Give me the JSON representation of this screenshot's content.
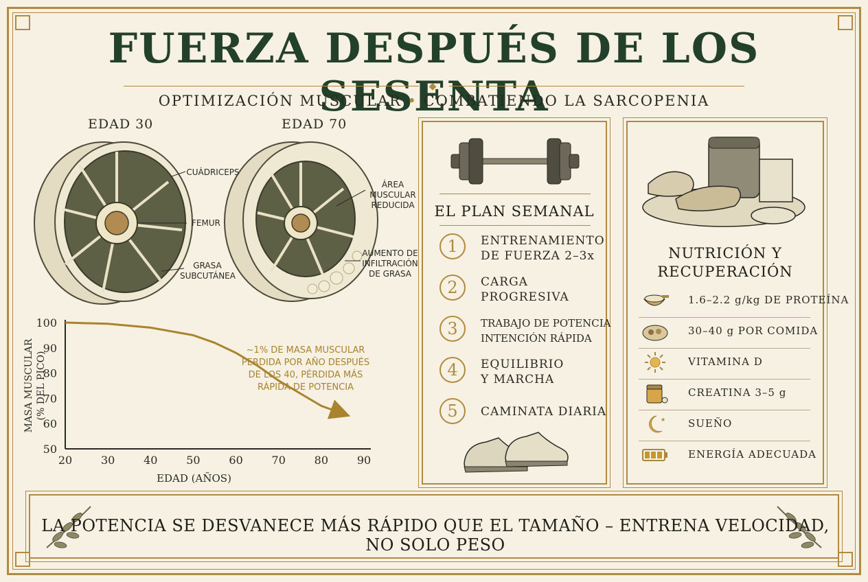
{
  "header": {
    "title": "FUERZA DESPUÉS DE LOS SESENTA",
    "subtitle_left": "OPTIMIZACIÓN MUSCULAR",
    "subtitle_sep": "•",
    "subtitle_right": "COMBATIENDO LA SARCOPENIA"
  },
  "cross_sections": {
    "young": {
      "label": "EDAD 30",
      "annotations": [
        "CUÁDRICEPS",
        "FEMUR",
        "GRASA SUBCUTÁNEA"
      ]
    },
    "old": {
      "label": "EDAD 70",
      "annotations": [
        "ÁREA MUSCULAR REDUCIDA",
        "AUMENTO DE INFILTRACIÓN DE GRASA"
      ]
    }
  },
  "chart_data": {
    "type": "line",
    "xlabel": "EDAD (AÑOS)",
    "ylabel": "MASA MUSCULAR (% DEL PICO)",
    "xlim": [
      20,
      90
    ],
    "ylim": [
      50,
      100
    ],
    "xticks": [
      20,
      30,
      40,
      50,
      60,
      70,
      80,
      90
    ],
    "yticks": [
      50,
      60,
      70,
      80,
      90,
      100
    ],
    "series": [
      {
        "x": [
          20,
          30,
          40,
          50,
          55,
          60,
          65,
          70,
          75,
          80,
          85
        ],
        "y": [
          100,
          99.5,
          98,
          95,
          92,
          88,
          83,
          77,
          72,
          67,
          64
        ]
      }
    ],
    "annotation": "~1% DE MASA MUSCULAR PERDIDA POR AÑO DESPUÉS DE LOS 40, PÉRDIDA MÁS RÁPIDA DE POTENCIA",
    "line_color": "#a9832f",
    "grid": false
  },
  "plan": {
    "title": "EL PLAN SEMANAL",
    "steps": [
      {
        "num": "1",
        "line1": "ENTRENAMIENTO",
        "line2": "DE FUERZA 2–3x"
      },
      {
        "num": "2",
        "line1": "CARGA",
        "line2": "PROGRESIVA"
      },
      {
        "num": "3",
        "line1": "TRABAJO DE POTENCIA",
        "line2": "INTENCIÓN RÁPIDA"
      },
      {
        "num": "4",
        "line1": "EQUILIBRIO",
        "line2": "Y MARCHA"
      },
      {
        "num": "5",
        "line1": "CAMINATA DIARIA",
        "line2": ""
      }
    ],
    "icons": [
      "dumbbell-icon",
      "sneakers-icon"
    ]
  },
  "nutrition": {
    "title_line1": "NUTRICIÓN Y",
    "title_line2": "RECUPERACIÓN",
    "items": [
      {
        "icon": "protein-scoop-icon",
        "text": "1.6–2.2 g/kg DE PROTEÍNA"
      },
      {
        "icon": "meal-plate-icon",
        "text": "30–40 g POR COMIDA"
      },
      {
        "icon": "sun-icon",
        "text": "VITAMINA D"
      },
      {
        "icon": "creatine-jar-icon",
        "text": "CREATINA 3–5 g"
      },
      {
        "icon": "moon-icon",
        "text": "SUEÑO"
      },
      {
        "icon": "battery-icon",
        "text": "ENERGÍA ADECUADA"
      }
    ]
  },
  "banner": {
    "text": "LA POTENCIA SE DESVANECE MÁS RÁPIDO QUE EL TAMAÑO – ENTRENA VELOCIDAD, NO SOLO PESO"
  },
  "colors": {
    "gold": "#b08a3e",
    "title_green": "#23402b",
    "background": "#f6f1e2"
  }
}
